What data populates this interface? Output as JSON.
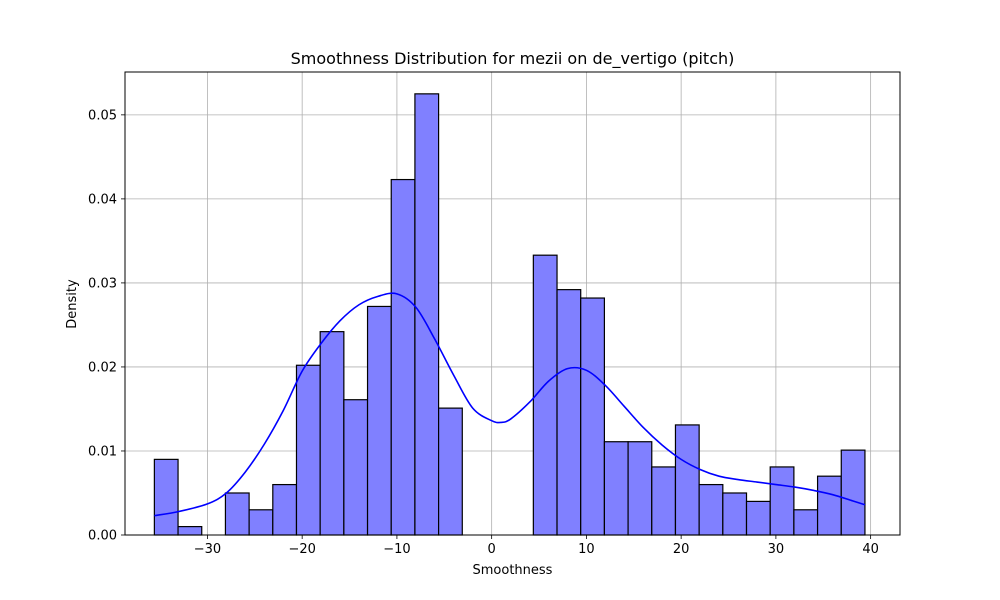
{
  "chart_data": {
    "type": "histogram",
    "title": "Smoothness Distribution for mezii on de_vertigo (pitch)",
    "xlabel": "Smoothness",
    "ylabel": "Density",
    "xlim": [
      -38.7,
      43.1
    ],
    "ylim": [
      0,
      0.0551
    ],
    "x_ticks": [
      -30,
      -20,
      -10,
      0,
      10,
      20,
      30,
      40
    ],
    "x_tick_labels": [
      "−30",
      "−20",
      "−10",
      "0",
      "10",
      "20",
      "30",
      "40"
    ],
    "y_ticks": [
      0.0,
      0.01,
      0.02,
      0.03,
      0.04,
      0.05
    ],
    "y_tick_labels": [
      "0.00",
      "0.01",
      "0.02",
      "0.03",
      "0.04",
      "0.05"
    ],
    "grid": true,
    "bin_edges": [
      -35.6,
      -33.1,
      -30.6,
      -28.1,
      -25.6,
      -23.1,
      -20.6,
      -18.1,
      -15.6,
      -13.1,
      -10.6,
      -8.1,
      -5.6,
      -3.1,
      -0.6,
      1.9,
      4.4,
      6.9,
      9.4,
      11.9,
      14.4,
      16.9,
      19.4,
      21.9,
      24.4,
      26.9,
      29.4,
      31.9,
      34.4,
      36.9,
      39.4
    ],
    "densities": [
      0.009,
      0.001,
      0.0,
      0.005,
      0.003,
      0.006,
      0.0202,
      0.0242,
      0.0161,
      0.0272,
      0.0423,
      0.0525,
      0.0151,
      0.0,
      0.0,
      0.0,
      0.0333,
      0.0292,
      0.0282,
      0.0111,
      0.0111,
      0.0081,
      0.0131,
      0.006,
      0.005,
      0.004,
      0.0081,
      0.003,
      0.007,
      0.0101
    ],
    "bar_color": "#8080ff",
    "bar_edge_color": "#000000",
    "kde": {
      "color": "#0000ff",
      "x": [
        -35.6,
        -33,
        -30,
        -28,
        -26,
        -24,
        -22,
        -20,
        -18,
        -16,
        -14,
        -12,
        -10,
        -8,
        -6,
        -4,
        -2,
        0,
        1,
        2,
        4,
        6,
        8,
        10,
        12,
        14,
        16,
        18,
        20,
        22,
        24,
        26,
        28,
        30,
        32,
        34,
        36,
        38,
        39.4
      ],
      "y": [
        0.0023,
        0.0028,
        0.0037,
        0.005,
        0.0075,
        0.0108,
        0.0148,
        0.0195,
        0.0228,
        0.0255,
        0.0274,
        0.0284,
        0.0287,
        0.0271,
        0.0233,
        0.019,
        0.0151,
        0.0136,
        0.0134,
        0.0138,
        0.0158,
        0.0183,
        0.0198,
        0.0196,
        0.0178,
        0.0153,
        0.0128,
        0.0107,
        0.009,
        0.0078,
        0.007,
        0.0066,
        0.0063,
        0.006,
        0.0057,
        0.0053,
        0.0048,
        0.0041,
        0.0036
      ]
    }
  }
}
